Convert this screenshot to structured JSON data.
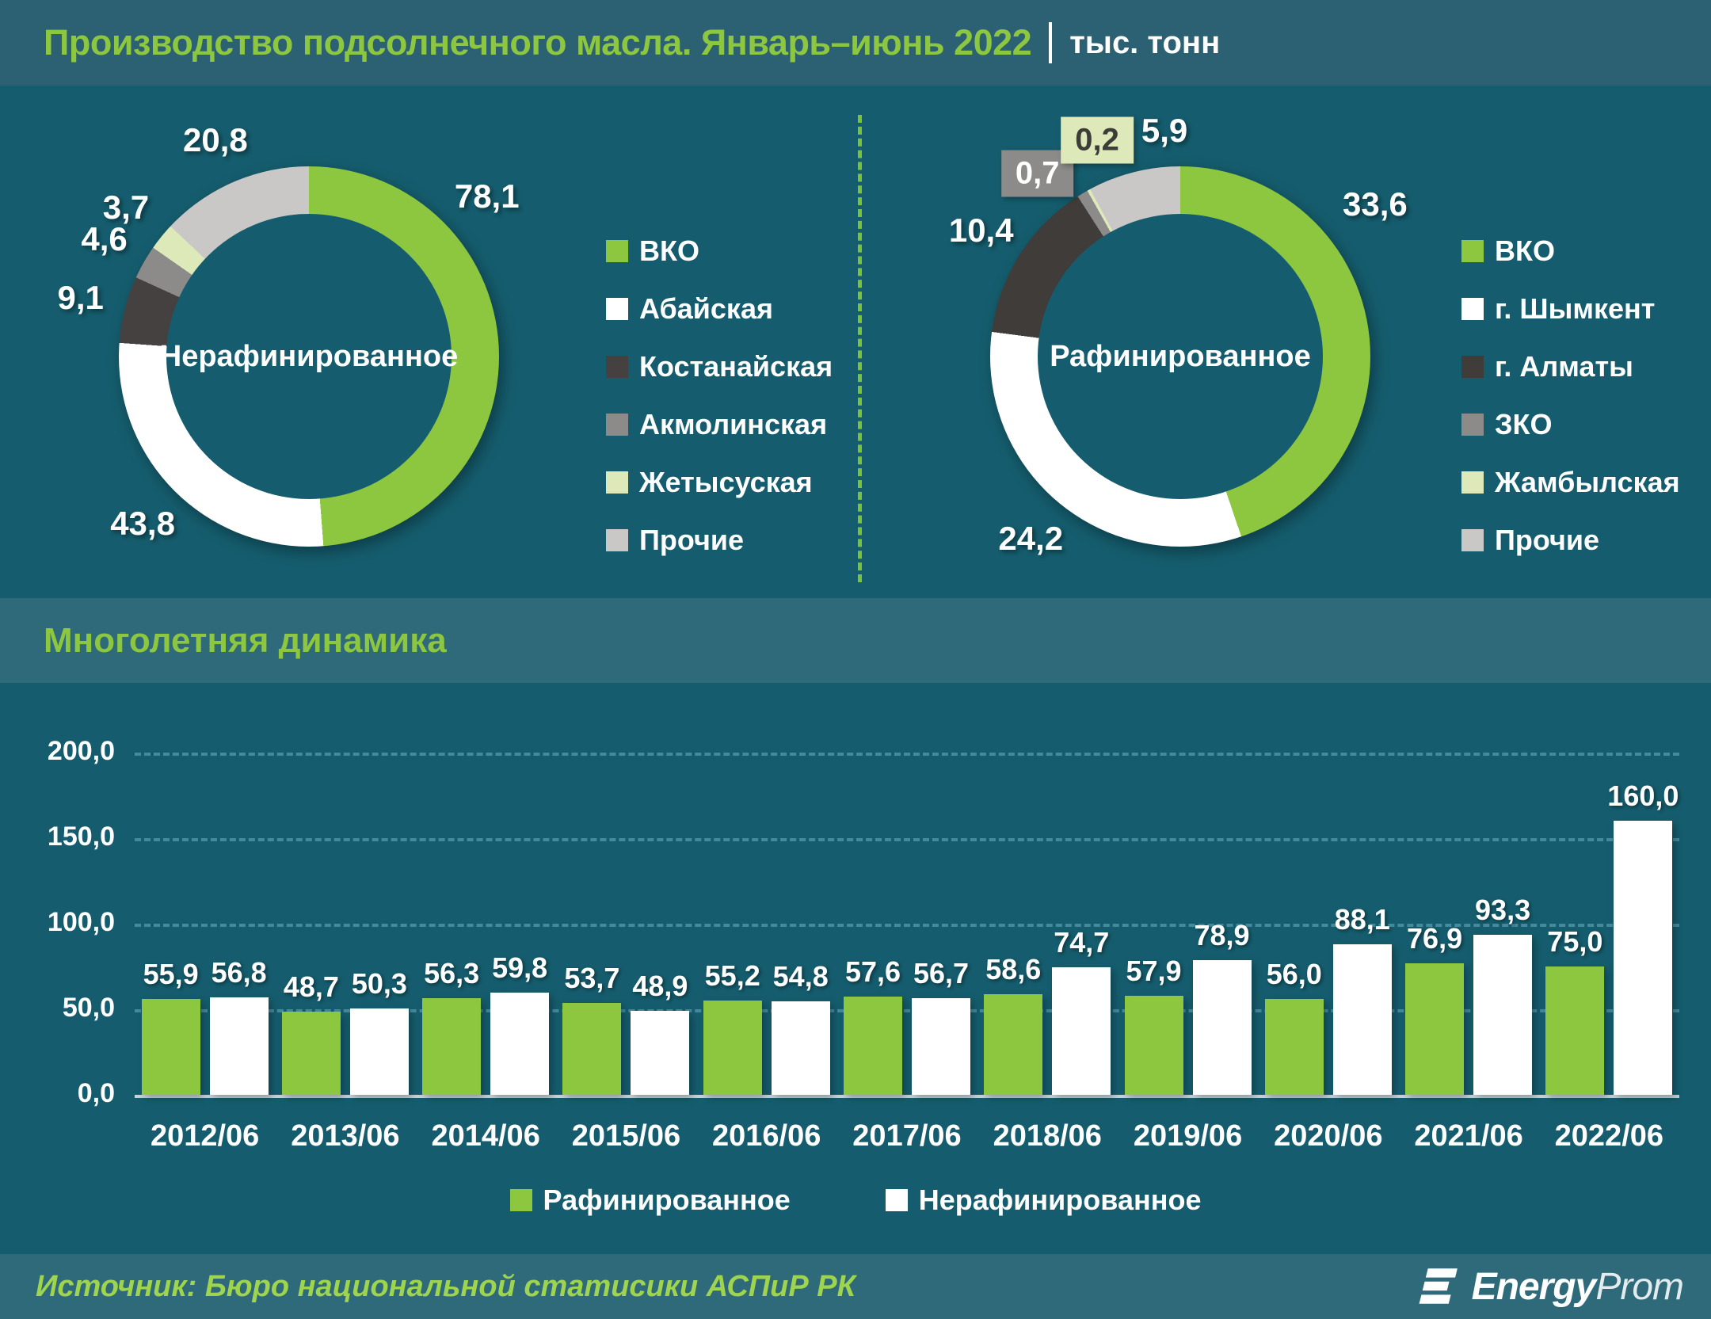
{
  "title": {
    "text": "Производство подсолнечного масла. Январь–июнь 2022",
    "unit": "тыс. тонн"
  },
  "footer": {
    "source": "Источник: Бюро национальной статисики АСПиР РК",
    "logo_bold": "Energy",
    "logo_light": "Prom"
  },
  "colors": {
    "accent_green": "#8dc63f",
    "background": "#155d6e",
    "band": "#2f6a7a",
    "title_bar": "#2b6173",
    "white": "#ffffff",
    "pale_green": "#dde9b8",
    "dark_gray": "#454140",
    "mid_gray": "#8c8b8a",
    "light_gray": "#c9c8c7",
    "gridline": "#4e93a5"
  },
  "chart_data": [
    {
      "type": "pie",
      "subtype": "donut",
      "center_label": "Нерафинированное",
      "unit": "тыс. тонн",
      "legend_position": "right",
      "slices": [
        {
          "label": "ВКО",
          "value": "78,1",
          "color": "#8dc63f",
          "label_angle_deg": 48,
          "label_r": 1.26
        },
        {
          "label": "Абайская",
          "value": "43,8",
          "color": "#ffffff"
        },
        {
          "label": "Костанайская",
          "value": "9,1",
          "color": "#454140"
        },
        {
          "label": "Акмолинская",
          "value": "4,6",
          "color": "#8c8b8a"
        },
        {
          "label": "Жетысуская",
          "value": "3,7",
          "color": "#dde9b8"
        },
        {
          "label": "Прочие",
          "value": "20,8",
          "color": "#c9c8c7"
        }
      ]
    },
    {
      "type": "pie",
      "subtype": "donut",
      "center_label": "Рафинированное",
      "unit": "тыс. тонн",
      "legend_position": "right",
      "slices": [
        {
          "label": "ВКО",
          "value": "33,6",
          "color": "#8dc63f",
          "label_angle_deg": 52,
          "label_r": 1.3
        },
        {
          "label": "г. Шымкент",
          "value": "24,2",
          "color": "#ffffff"
        },
        {
          "label": "г. Алматы",
          "value": "10,4",
          "color": "#3f3c3a"
        },
        {
          "label": "ЗКО",
          "value": "0,7",
          "color": "#8c8b8a",
          "boxed": true,
          "label_angle_deg": 322,
          "label_r": 1.22
        },
        {
          "label": "Жамбылская",
          "value": "0,2",
          "color": "#dde9b8",
          "boxed": true,
          "label_angle_deg": 339,
          "label_r": 1.22
        },
        {
          "label": "Прочие",
          "value": "5,9",
          "color": "#c9c8c7",
          "label_angle_deg": 356,
          "label_r": 1.19
        }
      ]
    },
    {
      "type": "bar",
      "title": "Многолетняя динамика",
      "categories": [
        "2012/06",
        "2013/06",
        "2014/06",
        "2015/06",
        "2016/06",
        "2017/06",
        "2018/06",
        "2019/06",
        "2020/06",
        "2021/06",
        "2022/06"
      ],
      "series": [
        {
          "name": "Рафинированное",
          "color": "#8dc63f",
          "values": [
            "55,9",
            "48,7",
            "56,3",
            "53,7",
            "55,2",
            "57,6",
            "58,6",
            "57,9",
            "56,0",
            "76,9",
            "75,0"
          ]
        },
        {
          "name": "Нерафинированное",
          "color": "#ffffff",
          "values": [
            "56,8",
            "50,3",
            "59,8",
            "48,9",
            "54,8",
            "56,7",
            "74,7",
            "78,9",
            "88,1",
            "93,3",
            "160,0"
          ]
        }
      ],
      "y_ticks": [
        "200,0",
        "150,0",
        "100,0",
        "50,0",
        "0,0"
      ],
      "ylim": [
        0,
        200
      ],
      "grid": "horizontal-dashed",
      "legend_position": "bottom"
    }
  ]
}
